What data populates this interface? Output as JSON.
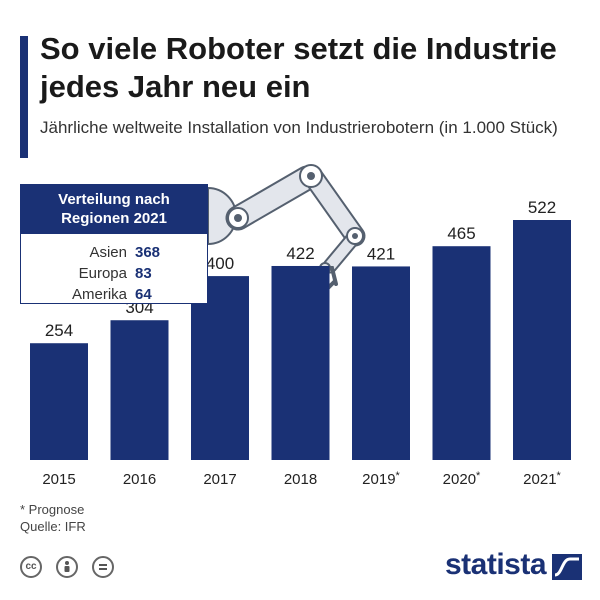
{
  "header": {
    "title": "So viele Roboter setzt die Industrie jedes Jahr neu ein",
    "subtitle": "Jährliche weltweite Installation von Industrierobotern (in 1.000 Stück)"
  },
  "inset": {
    "heading": "Verteilung nach Regionen 2021",
    "rows": [
      {
        "region": "Asien",
        "value": "368"
      },
      {
        "region": "Europa",
        "value": "83"
      },
      {
        "region": "Amerika",
        "value": "64"
      }
    ]
  },
  "chart_data": {
    "type": "bar",
    "categories": [
      "2015",
      "2016",
      "2017",
      "2018",
      "2019*",
      "2020*",
      "2021*"
    ],
    "values": [
      254,
      304,
      400,
      422,
      421,
      465,
      522
    ],
    "title": "So viele Roboter setzt die Industrie jedes Jahr neu ein",
    "subtitle": "Jährliche weltweite Installation von Industrierobotern (in 1.000 Stück)",
    "xlabel": "",
    "ylabel": "",
    "ylim": [
      0,
      600
    ],
    "grid": false,
    "bar_color": "#1a3175",
    "data_labels": true
  },
  "footnotes": {
    "note": "* Prognose",
    "source": "Quelle: IFR"
  },
  "license_icons": [
    "cc-icon",
    "person-attribution-icon",
    "equals-noderivs-icon"
  ],
  "brand": {
    "name": "statista",
    "color": "#1a3175"
  }
}
